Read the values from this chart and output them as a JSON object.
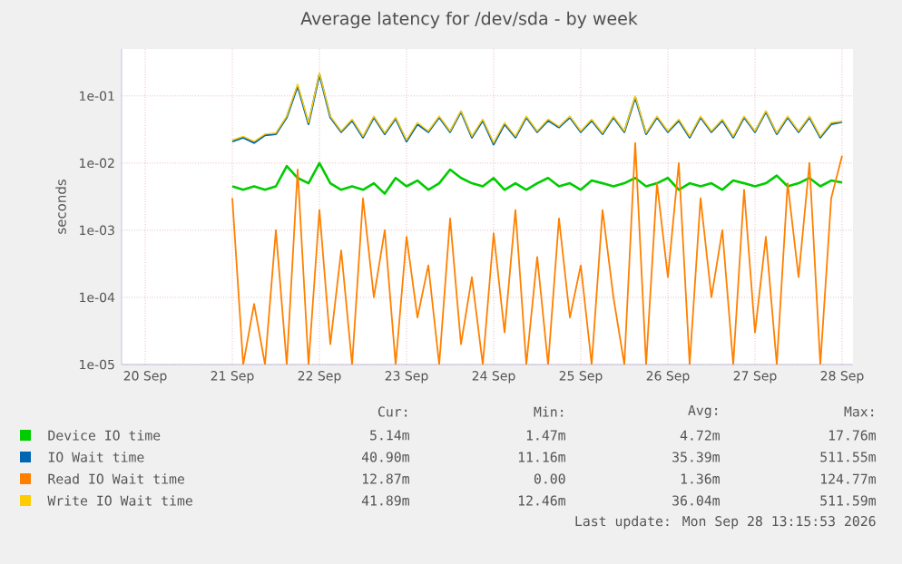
{
  "chart_data": {
    "type": "line",
    "title": "Average latency for /dev/sda - by week",
    "ylabel": "seconds",
    "x": [
      "2026-09-21T12:00",
      "2026-09-21T15:00",
      "2026-09-21T18:00",
      "2026-09-21T21:00",
      "2026-09-22T00:00",
      "2026-09-22T03:00",
      "2026-09-22T06:00",
      "2026-09-22T09:00",
      "2026-09-22T12:00",
      "2026-09-22T15:00",
      "2026-09-22T18:00",
      "2026-09-22T21:00",
      "2026-09-23T00:00",
      "2026-09-23T03:00",
      "2026-09-23T06:00",
      "2026-09-23T09:00",
      "2026-09-23T12:00",
      "2026-09-23T15:00",
      "2026-09-23T18:00",
      "2026-09-23T21:00",
      "2026-09-24T00:00",
      "2026-09-24T03:00",
      "2026-09-24T06:00",
      "2026-09-24T09:00",
      "2026-09-24T12:00",
      "2026-09-24T15:00",
      "2026-09-24T18:00",
      "2026-09-24T21:00",
      "2026-09-25T00:00",
      "2026-09-25T03:00",
      "2026-09-25T06:00",
      "2026-09-25T09:00",
      "2026-09-25T12:00",
      "2026-09-25T15:00",
      "2026-09-25T18:00",
      "2026-09-25T21:00",
      "2026-09-26T00:00",
      "2026-09-26T03:00",
      "2026-09-26T06:00",
      "2026-09-26T09:00",
      "2026-09-26T12:00",
      "2026-09-26T15:00",
      "2026-09-26T18:00",
      "2026-09-26T21:00",
      "2026-09-27T00:00",
      "2026-09-27T03:00",
      "2026-09-27T06:00",
      "2026-09-27T09:00",
      "2026-09-27T12:00",
      "2026-09-27T15:00",
      "2026-09-27T18:00",
      "2026-09-27T21:00",
      "2026-09-28T00:00",
      "2026-09-28T03:00",
      "2026-09-28T06:00",
      "2026-09-28T09:00",
      "2026-09-28T12:00"
    ],
    "series": [
      {
        "name": "Device IO time",
        "color": "#00cc00",
        "values": [
          0.0045,
          0.004,
          0.0045,
          0.004,
          0.0045,
          0.009,
          0.006,
          0.005,
          0.01,
          0.005,
          0.004,
          0.0045,
          0.004,
          0.005,
          0.0035,
          0.006,
          0.0045,
          0.0055,
          0.004,
          0.005,
          0.008,
          0.006,
          0.005,
          0.0045,
          0.006,
          0.004,
          0.005,
          0.004,
          0.005,
          0.006,
          0.0045,
          0.005,
          0.004,
          0.0055,
          0.005,
          0.0045,
          0.005,
          0.006,
          0.0045,
          0.005,
          0.006,
          0.004,
          0.005,
          0.0045,
          0.005,
          0.004,
          0.0055,
          0.005,
          0.0045,
          0.005,
          0.0065,
          0.0045,
          0.005,
          0.006,
          0.0045,
          0.0055,
          0.00514
        ]
      },
      {
        "name": "IO Wait time",
        "color": "#0066b3",
        "values": [
          0.021,
          0.024,
          0.02,
          0.026,
          0.027,
          0.048,
          0.14,
          0.038,
          0.21,
          0.048,
          0.029,
          0.043,
          0.024,
          0.048,
          0.027,
          0.046,
          0.021,
          0.038,
          0.029,
          0.048,
          0.029,
          0.058,
          0.024,
          0.043,
          0.019,
          0.038,
          0.024,
          0.048,
          0.029,
          0.043,
          0.034,
          0.048,
          0.029,
          0.043,
          0.027,
          0.048,
          0.029,
          0.095,
          0.027,
          0.048,
          0.029,
          0.043,
          0.024,
          0.048,
          0.029,
          0.043,
          0.024,
          0.048,
          0.029,
          0.058,
          0.027,
          0.048,
          0.029,
          0.048,
          0.024,
          0.038,
          0.0409
        ]
      },
      {
        "name": "Read IO Wait time",
        "color": "#ff8000",
        "values": [
          0.003,
          1e-05,
          8e-05,
          1e-05,
          0.001,
          1e-05,
          0.008,
          1e-05,
          0.002,
          2e-05,
          0.0005,
          1e-05,
          0.003,
          0.0001,
          0.001,
          1e-05,
          0.0008,
          5e-05,
          0.0003,
          1e-05,
          0.0015,
          2e-05,
          0.0002,
          1e-05,
          0.0009,
          3e-05,
          0.002,
          1e-05,
          0.0004,
          1e-05,
          0.0015,
          5e-05,
          0.0003,
          1e-05,
          0.002,
          0.0001,
          1e-05,
          0.02,
          1e-05,
          0.005,
          0.0002,
          0.01,
          1e-05,
          0.003,
          0.0001,
          0.001,
          1e-05,
          0.004,
          3e-05,
          0.0008,
          1e-05,
          0.005,
          0.0002,
          0.01,
          1e-05,
          0.003,
          0.01287
        ]
      },
      {
        "name": "Write IO Wait time",
        "color": "#ffcc00",
        "values": [
          0.022,
          0.025,
          0.021,
          0.027,
          0.028,
          0.05,
          0.15,
          0.04,
          0.22,
          0.05,
          0.03,
          0.045,
          0.025,
          0.05,
          0.028,
          0.048,
          0.022,
          0.04,
          0.03,
          0.05,
          0.03,
          0.06,
          0.025,
          0.045,
          0.02,
          0.04,
          0.025,
          0.05,
          0.03,
          0.045,
          0.035,
          0.05,
          0.03,
          0.045,
          0.028,
          0.05,
          0.03,
          0.1,
          0.028,
          0.05,
          0.03,
          0.045,
          0.025,
          0.05,
          0.03,
          0.045,
          0.025,
          0.05,
          0.03,
          0.06,
          0.028,
          0.05,
          0.03,
          0.05,
          0.025,
          0.04,
          0.04189
        ]
      }
    ],
    "xlim": [
      "2026-09-20T05:30",
      "2026-09-28T15:00"
    ],
    "xticks": [
      {
        "value": "2026-09-20T12:00",
        "label": "20 Sep"
      },
      {
        "value": "2026-09-21T12:00",
        "label": "21 Sep"
      },
      {
        "value": "2026-09-22T12:00",
        "label": "22 Sep"
      },
      {
        "value": "2026-09-23T12:00",
        "label": "23 Sep"
      },
      {
        "value": "2026-09-24T12:00",
        "label": "24 Sep"
      },
      {
        "value": "2026-09-25T12:00",
        "label": "25 Sep"
      },
      {
        "value": "2026-09-26T12:00",
        "label": "26 Sep"
      },
      {
        "value": "2026-09-27T12:00",
        "label": "27 Sep"
      },
      {
        "value": "2026-09-28T12:00",
        "label": "28 Sep"
      }
    ],
    "ylim": [
      1e-05,
      0.5
    ],
    "yticks": [
      {
        "value": 1e-05,
        "label": "1e-05"
      },
      {
        "value": 0.0001,
        "label": "1e-04"
      },
      {
        "value": 0.001,
        "label": "1e-03"
      },
      {
        "value": 0.01,
        "label": "1e-02"
      },
      {
        "value": 0.1,
        "label": "1e-01"
      }
    ],
    "log": "y",
    "grid": true,
    "legend": "bottom",
    "marker": "none",
    "line_style": "solid",
    "annotations": [
      "Cur:",
      "Min:",
      "Avg:",
      "Max:",
      "5.14m",
      "1.47m",
      "4.72m",
      "17.76m",
      "40.90m",
      "11.16m",
      "35.39m",
      "511.55m",
      "12.87m",
      "0.00",
      "1.36m",
      "124.77m",
      "41.89m",
      "12.46m",
      "36.04m",
      "511.59m",
      "Last update: Mon Sep 28 13:15:53 2026"
    ]
  }
}
